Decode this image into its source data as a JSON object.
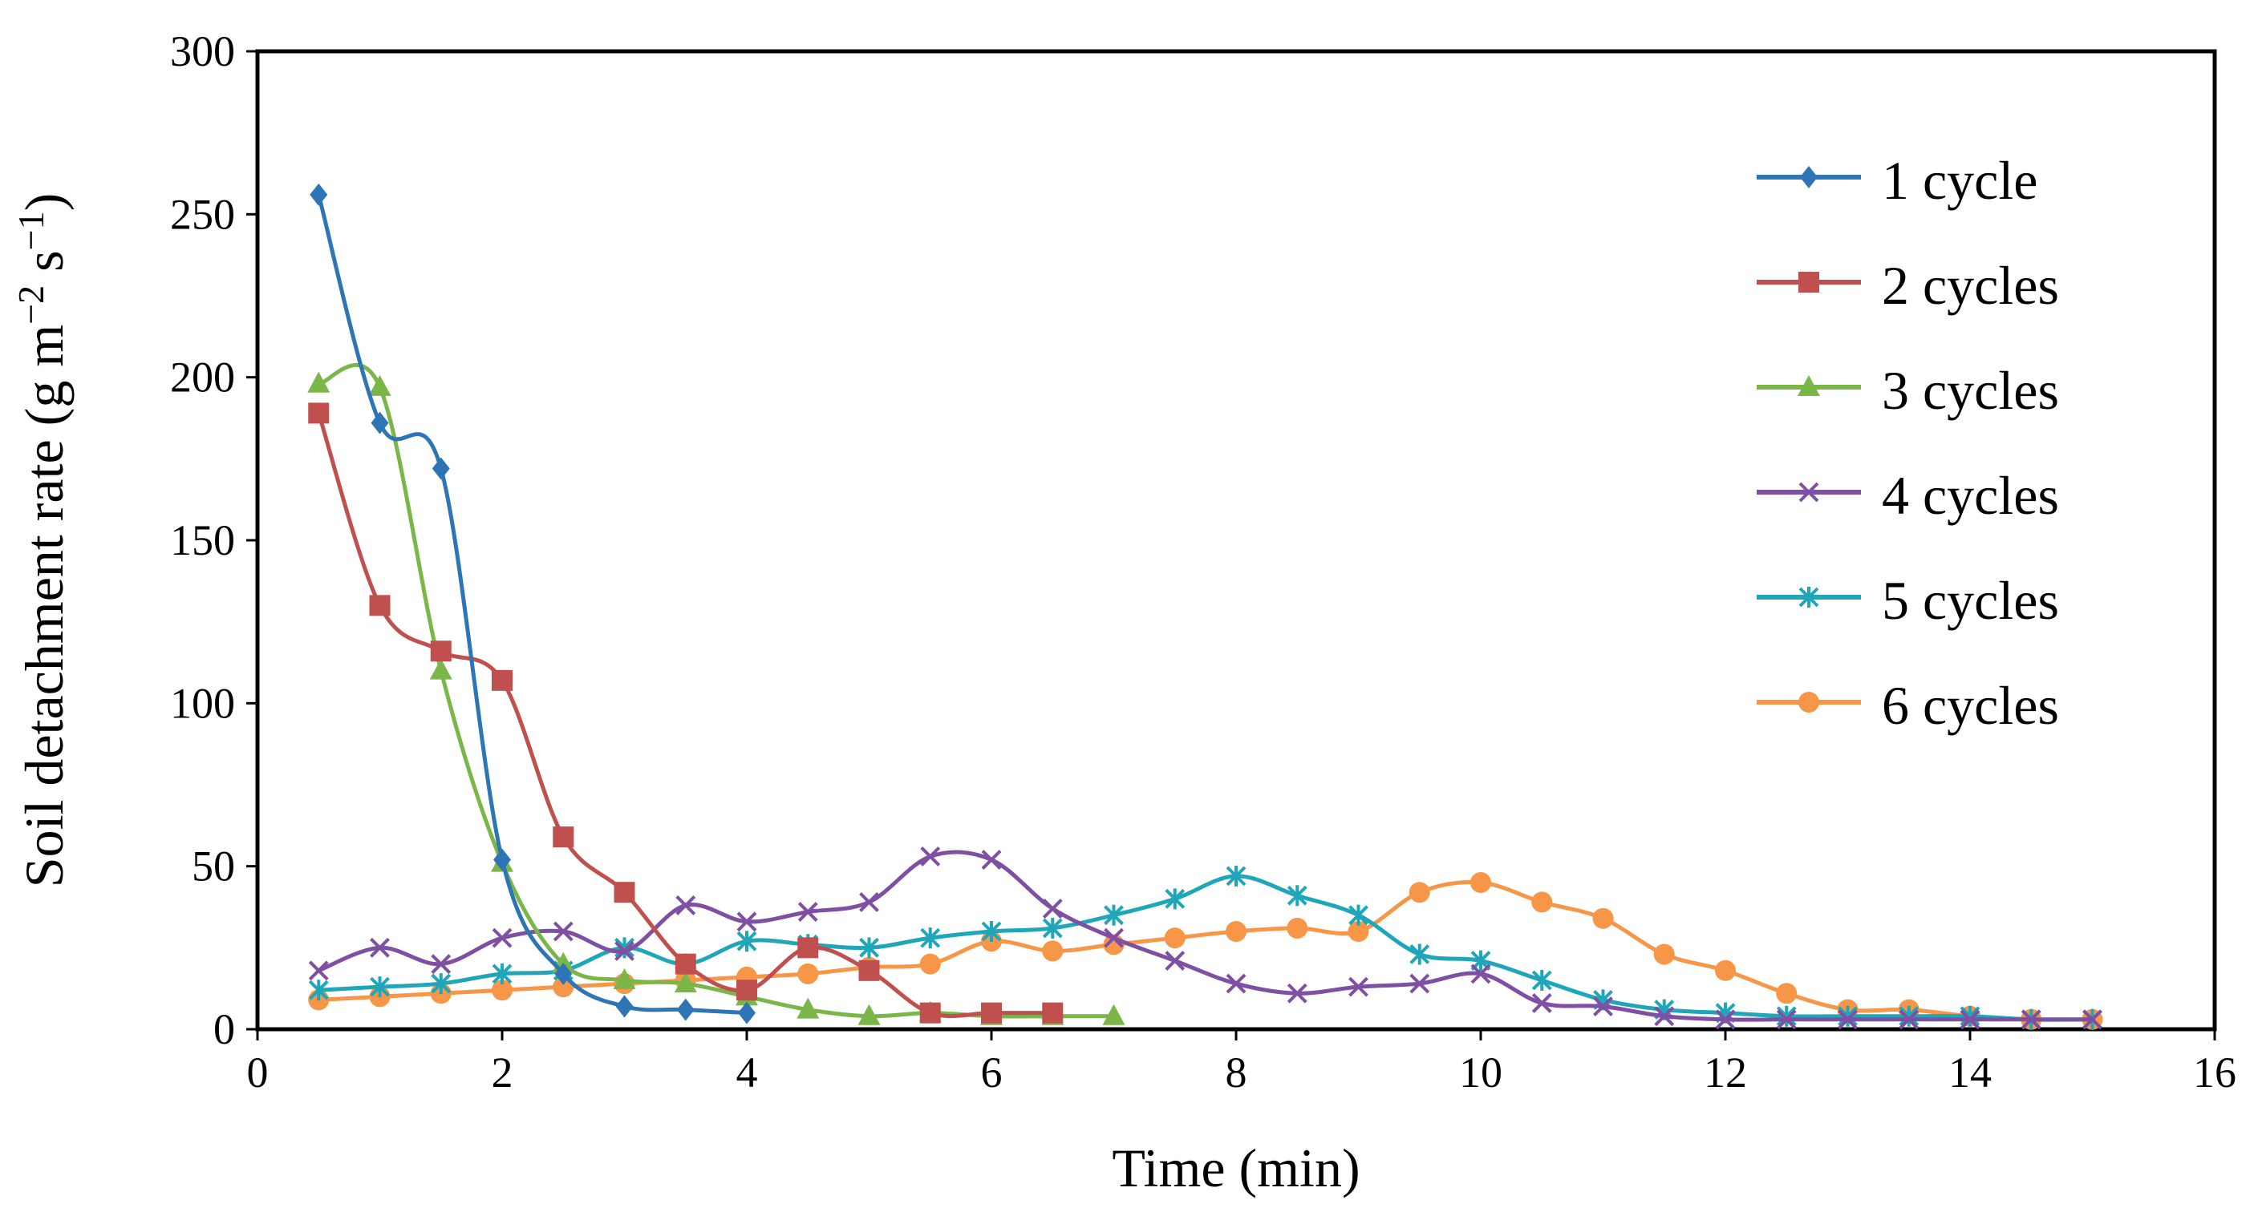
{
  "chart_data": {
    "type": "line",
    "title": "",
    "xlabel": "Time (min)",
    "ylabel_parts": {
      "main": "Soil detachment rate (g m",
      "exp1": "−2",
      "mid": " s",
      "exp2": "−1",
      "end": ")"
    },
    "xlim": [
      0,
      16
    ],
    "ylim": [
      0,
      300
    ],
    "x_ticks": [
      "0",
      "2",
      "4",
      "6",
      "8",
      "10",
      "12",
      "14",
      "16"
    ],
    "y_ticks": [
      "0",
      "50",
      "100",
      "150",
      "200",
      "250",
      "300"
    ],
    "grid": false,
    "legend_position": "top-right",
    "series": [
      {
        "name": "1 cycle",
        "color": "#2E75B6",
        "marker": "diamond",
        "x": [
          0.5,
          1,
          1.5,
          2,
          2.5,
          3,
          3.5,
          4
        ],
        "y": [
          256,
          186,
          172,
          52,
          17,
          7,
          6,
          5
        ]
      },
      {
        "name": "2 cycles",
        "color": "#C0504D",
        "marker": "square",
        "x": [
          0.5,
          1,
          1.5,
          2,
          2.5,
          3,
          3.5,
          4,
          4.5,
          5,
          5.5,
          6,
          6.5
        ],
        "y": [
          189,
          130,
          116,
          107,
          59,
          42,
          20,
          12,
          25,
          18,
          5,
          5,
          5
        ]
      },
      {
        "name": "3 cycles",
        "color": "#7AB648",
        "marker": "triangle",
        "x": [
          0.5,
          1,
          1.5,
          2,
          2.5,
          3,
          3.5,
          4,
          4.5,
          5,
          5.5,
          6,
          6.5,
          7
        ],
        "y": [
          198,
          197,
          110,
          51,
          20,
          15,
          14,
          10,
          6,
          4,
          5,
          4,
          4,
          4
        ]
      },
      {
        "name": "4 cycles",
        "color": "#7F4FA3",
        "marker": "x",
        "x": [
          0.5,
          1,
          1.5,
          2,
          2.5,
          3,
          3.5,
          4,
          4.5,
          5,
          5.5,
          6,
          6.5,
          7,
          7.5,
          8,
          8.5,
          9,
          9.5,
          10,
          10.5,
          11,
          11.5,
          12,
          12.5,
          13,
          13.5,
          14,
          14.5,
          15
        ],
        "y": [
          18,
          25,
          20,
          28,
          30,
          24,
          38,
          33,
          36,
          39,
          53,
          52,
          37,
          28,
          21,
          14,
          11,
          13,
          14,
          17,
          8,
          7,
          4,
          3,
          3,
          3,
          3,
          3,
          3,
          3
        ]
      },
      {
        "name": "5 cycles",
        "color": "#1FA6B8",
        "marker": "star",
        "x": [
          0.5,
          1,
          1.5,
          2,
          2.5,
          3,
          3.5,
          4,
          4.5,
          5,
          5.5,
          6,
          6.5,
          7,
          7.5,
          8,
          8.5,
          9,
          9.5,
          10,
          10.5,
          11,
          11.5,
          12,
          12.5,
          13,
          13.5,
          14,
          14.5,
          15
        ],
        "y": [
          12,
          13,
          14,
          17,
          18,
          25,
          20,
          27,
          26,
          25,
          28,
          30,
          31,
          35,
          40,
          47,
          41,
          35,
          23,
          21,
          15,
          9,
          6,
          5,
          4,
          4,
          4,
          4,
          3,
          3
        ]
      },
      {
        "name": "6 cycles",
        "color": "#F79646",
        "marker": "circle",
        "x": [
          0.5,
          1,
          1.5,
          2,
          2.5,
          3,
          3.5,
          4,
          4.5,
          5,
          5.5,
          6,
          6.5,
          7,
          7.5,
          8,
          8.5,
          9,
          9.5,
          10,
          10.5,
          11,
          11.5,
          12,
          12.5,
          13,
          13.5,
          14,
          14.5,
          15
        ],
        "y": [
          9,
          10,
          11,
          12,
          13,
          14,
          15,
          16,
          17,
          19,
          20,
          27,
          24,
          26,
          28,
          30,
          31,
          30,
          42,
          45,
          39,
          34,
          23,
          18,
          11,
          6,
          6,
          4,
          3,
          3
        ]
      }
    ]
  }
}
